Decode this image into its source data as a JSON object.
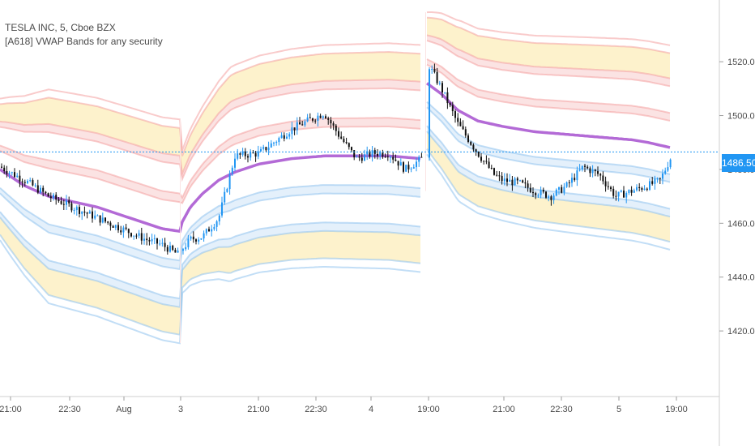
{
  "legend": {
    "title": "TESLA INC, 5, Cboe BZX",
    "indicator": "[A618] VWAP Bands for any security"
  },
  "price_label": "1486.50",
  "colors": {
    "vwap": "#b36ad6",
    "band_red": "#f4a0a0",
    "band_blue": "#8fc3ef",
    "fill_yellow": "#fdf2cc",
    "fill_red": "#fbe3e3",
    "fill_blue": "#e4f0fb",
    "candle_up": "#2196f3",
    "candle_down": "#111111",
    "current_price_line": "#2196f3"
  },
  "chart_data": {
    "type": "line",
    "title": "",
    "ylim": [
      1408,
      1540
    ],
    "y_ticks": [
      1420,
      1440,
      1460,
      1480,
      1500,
      1520
    ],
    "y_tick_labels": [
      "1420.00",
      "1440.00",
      "1460.00",
      "1480.00",
      "1500.00",
      "1520.00"
    ],
    "x_tick_labels": [
      "21:00",
      "22:30",
      "Aug",
      "3",
      "21:00",
      "22:30",
      "4",
      "19:00",
      "21:00",
      "22:30",
      "5",
      "19:00"
    ],
    "current_price": 1486.5,
    "series": [
      {
        "points": [
          [
            0,
            1480
          ],
          [
            30,
            1474
          ],
          [
            60,
            1470
          ],
          [
            90,
            1468
          ],
          [
            120,
            1466
          ],
          [
            150,
            1463
          ],
          [
            180,
            1460
          ],
          [
            200,
            1458
          ],
          [
            222,
            1457
          ],
          [
            224,
            1460
          ],
          [
            235,
            1466
          ],
          [
            250,
            1471
          ],
          [
            270,
            1476
          ],
          [
            290,
            1479
          ],
          [
            320,
            1482
          ],
          [
            360,
            1484
          ],
          [
            400,
            1485
          ],
          [
            440,
            1485
          ],
          [
            480,
            1485
          ],
          [
            521,
            1484
          ],
          [
            527,
            1512
          ],
          [
            545,
            1508
          ],
          [
            565,
            1502
          ],
          [
            590,
            1498
          ],
          [
            620,
            1496
          ],
          [
            660,
            1494
          ],
          [
            700,
            1493
          ],
          [
            740,
            1492
          ],
          [
            780,
            1491
          ],
          [
            800,
            1490
          ],
          [
            829,
            1488
          ]
        ]
      },
      {
        "points": [
          [
            0,
            1481
          ],
          [
            30,
            1476
          ],
          [
            60,
            1470
          ],
          [
            90,
            1466
          ],
          [
            120,
            1462
          ],
          [
            150,
            1458
          ],
          [
            180,
            1454
          ],
          [
            200,
            1452
          ],
          [
            222,
            1448
          ],
          [
            224,
            1450
          ],
          [
            235,
            1454
          ],
          [
            250,
            1455
          ],
          [
            270,
            1462
          ],
          [
            290,
            1485
          ],
          [
            320,
            1486
          ],
          [
            360,
            1495
          ],
          [
            400,
            1501
          ],
          [
            420,
            1492
          ],
          [
            440,
            1484
          ],
          [
            460,
            1486
          ],
          [
            480,
            1486
          ],
          [
            500,
            1480
          ],
          [
            521,
            1484
          ],
          [
            527,
            1520
          ],
          [
            545,
            1510
          ],
          [
            565,
            1497
          ],
          [
            590,
            1486
          ],
          [
            610,
            1478
          ],
          [
            620,
            1476
          ],
          [
            640,
            1475
          ],
          [
            660,
            1472
          ],
          [
            680,
            1470
          ],
          [
            700,
            1474
          ],
          [
            720,
            1481
          ],
          [
            740,
            1478
          ],
          [
            760,
            1470
          ],
          [
            780,
            1472
          ],
          [
            800,
            1474
          ],
          [
            815,
            1476
          ],
          [
            829,
            1485
          ]
        ]
      }
    ]
  }
}
